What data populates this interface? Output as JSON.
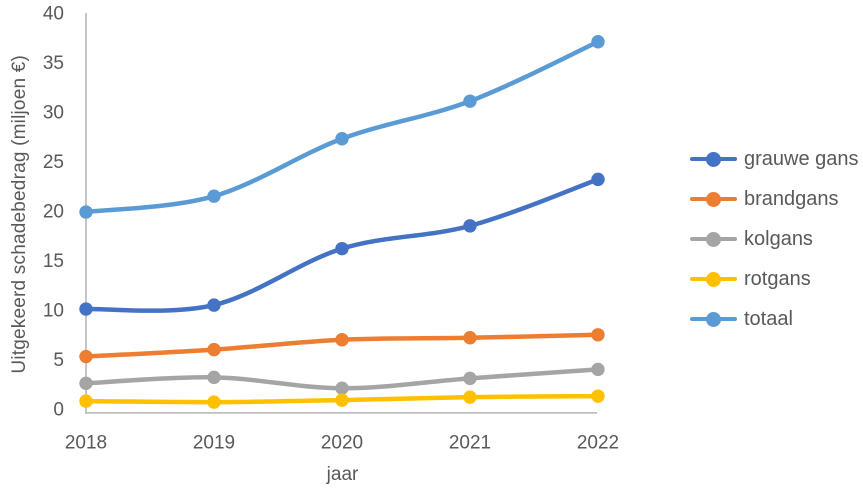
{
  "chart_data": {
    "type": "line",
    "line_style": "smooth",
    "markers": "circle",
    "categories": [
      "2018",
      "2019",
      "2020",
      "2021",
      "2022"
    ],
    "xlabel": "jaar",
    "ylabel": "Uitgekeerd schadebedrag (miljoen €)",
    "ylim": [
      0,
      40
    ],
    "yticks": [
      0,
      5,
      10,
      15,
      20,
      25,
      30,
      35,
      40
    ],
    "grid": false,
    "legend_position": "right",
    "series": [
      {
        "name": "grauwe gans",
        "color": "#4472C4",
        "values": [
          10.4,
          10.8,
          16.5,
          18.8,
          23.5
        ]
      },
      {
        "name": "brandgans",
        "color": "#ED7D31",
        "values": [
          5.6,
          6.3,
          7.3,
          7.5,
          7.8
        ]
      },
      {
        "name": "kolgans",
        "color": "#A5A5A5",
        "values": [
          2.9,
          3.5,
          2.4,
          3.4,
          4.3
        ]
      },
      {
        "name": "rotgans",
        "color": "#FFC000",
        "values": [
          1.1,
          1.0,
          1.2,
          1.5,
          1.6
        ]
      },
      {
        "name": "totaal",
        "color": "#5B9BD5",
        "values": [
          20.2,
          21.8,
          27.6,
          31.4,
          37.4
        ]
      }
    ]
  },
  "colors": {
    "background": "#FFFFFF",
    "axis_line": "#BFBFBF",
    "text": "#595959"
  }
}
